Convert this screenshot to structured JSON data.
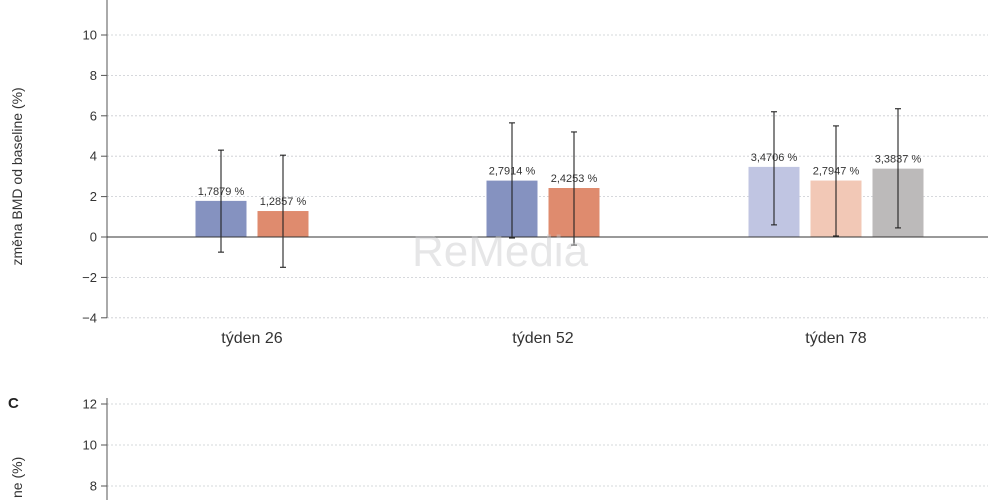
{
  "watermark": "ReMedia",
  "chart_data": [
    {
      "type": "bar",
      "panel": "",
      "ylabel": "změna BMD od baseline (%)",
      "ylim": [
        -4,
        12
      ],
      "yticks": [
        {
          "value": 10,
          "label": "10"
        },
        {
          "value": 8,
          "label": "8"
        },
        {
          "value": 6,
          "label": "6"
        },
        {
          "value": 4,
          "label": "4"
        },
        {
          "value": 2,
          "label": "2"
        },
        {
          "value": 0,
          "label": "0"
        },
        {
          "value": -2,
          "label": "−2"
        },
        {
          "value": -4,
          "label": "−4"
        }
      ],
      "grid": true,
      "categories": [
        "týden 26",
        "týden 52",
        "týden 78"
      ],
      "groups": [
        {
          "category": "týden 26",
          "bars": [
            {
              "value": 1.7879,
              "label": "1,7879 %",
              "err_low": -0.75,
              "err_high": 4.3,
              "color": "#8592c0"
            },
            {
              "value": 1.2857,
              "label": "1,2857 %",
              "err_low": -1.5,
              "err_high": 4.05,
              "color": "#df8b6e"
            }
          ]
        },
        {
          "category": "týden 52",
          "bars": [
            {
              "value": 2.7914,
              "label": "2,7914 %",
              "err_low": -0.05,
              "err_high": 5.65,
              "color": "#8592c0"
            },
            {
              "value": 2.4253,
              "label": "2,4253 %",
              "err_low": -0.4,
              "err_high": 5.2,
              "color": "#df8b6e"
            }
          ]
        },
        {
          "category": "týden 78",
          "bars": [
            {
              "value": 3.4706,
              "label": "3,4706 %",
              "err_low": 0.6,
              "err_high": 6.2,
              "color": "#c0c5e2"
            },
            {
              "value": 2.7947,
              "label": "2,7947 %",
              "err_low": 0.05,
              "err_high": 5.5,
              "color": "#f2c8b6"
            },
            {
              "value": 3.3837,
              "label": "3,3837 %",
              "err_low": 0.45,
              "err_high": 6.35,
              "color": "#bcbaba"
            }
          ]
        }
      ]
    },
    {
      "type": "bar",
      "panel": "C",
      "ylabel": "ne (%)",
      "ylim": [
        6,
        12
      ],
      "yticks": [
        {
          "value": 12,
          "label": "12"
        },
        {
          "value": 10,
          "label": "10"
        },
        {
          "value": 8,
          "label": "8"
        }
      ],
      "grid": true,
      "categories": [],
      "groups": []
    }
  ]
}
